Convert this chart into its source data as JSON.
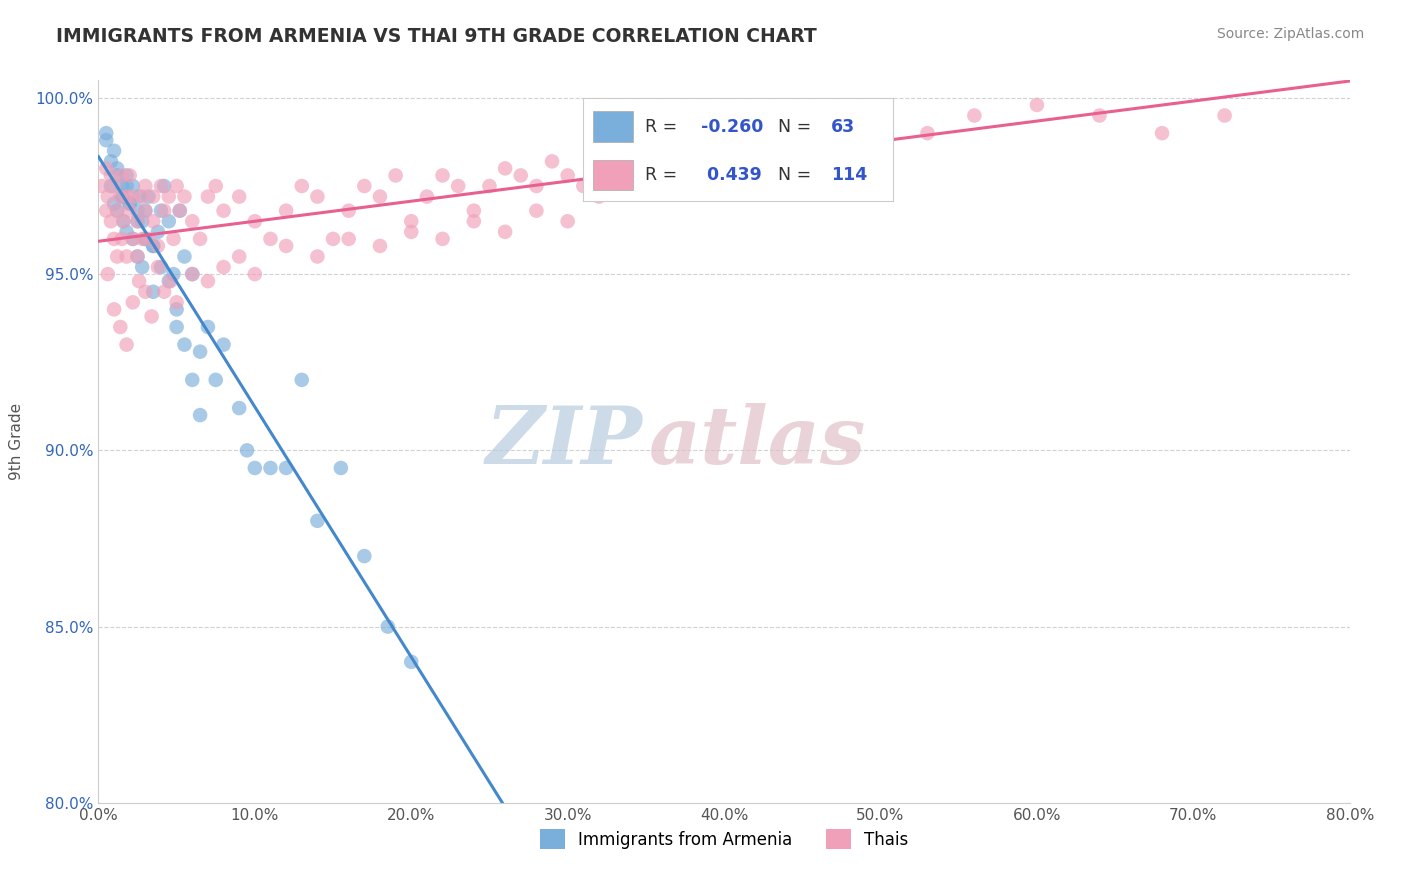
{
  "title": "IMMIGRANTS FROM ARMENIA VS THAI 9TH GRADE CORRELATION CHART",
  "source_text": "Source: ZipAtlas.com",
  "ylabel": "9th Grade",
  "xmin": 0.0,
  "xmax": 0.8,
  "ymin": 0.8,
  "ymax": 1.005,
  "yticks": [
    0.8,
    0.85,
    0.9,
    0.95,
    1.0
  ],
  "ytick_labels": [
    "80.0%",
    "85.0%",
    "90.0%",
    "95.0%",
    "100.0%"
  ],
  "xticks": [
    0.0,
    0.1,
    0.2,
    0.3,
    0.4,
    0.5,
    0.6,
    0.7,
    0.8
  ],
  "xtick_labels": [
    "0.0%",
    "10.0%",
    "20.0%",
    "30.0%",
    "40.0%",
    "50.0%",
    "60.0%",
    "70.0%",
    "80.0%"
  ],
  "armenia_R": -0.26,
  "armenia_N": 63,
  "thai_R": 0.439,
  "thai_N": 114,
  "armenia_color": "#7aaedb",
  "thai_color": "#f0a0b8",
  "armenia_line_color": "#4488cc",
  "thai_line_color": "#e86090",
  "dashed_line_color": "#b0b0b0",
  "legend_label_armenia": "Immigrants from Armenia",
  "legend_label_thai": "Thais",
  "watermark_zip": "ZIP",
  "watermark_atlas": "atlas",
  "watermark_color_zip": "#c8d8e8",
  "watermark_color_atlas": "#d8c8c8",
  "armenia_x": [
    0.005,
    0.008,
    0.01,
    0.012,
    0.012,
    0.015,
    0.016,
    0.016,
    0.018,
    0.018,
    0.02,
    0.022,
    0.022,
    0.025,
    0.025,
    0.026,
    0.028,
    0.028,
    0.03,
    0.03,
    0.032,
    0.035,
    0.035,
    0.038,
    0.04,
    0.042,
    0.045,
    0.048,
    0.05,
    0.052,
    0.055,
    0.06,
    0.065,
    0.07,
    0.075,
    0.08,
    0.09,
    0.095,
    0.1,
    0.11,
    0.12,
    0.13,
    0.14,
    0.155,
    0.17,
    0.185,
    0.2,
    0.005,
    0.008,
    0.01,
    0.012,
    0.015,
    0.018,
    0.02,
    0.025,
    0.03,
    0.035,
    0.04,
    0.045,
    0.05,
    0.055,
    0.06,
    0.065
  ],
  "armenia_y": [
    0.99,
    0.975,
    0.97,
    0.98,
    0.968,
    0.975,
    0.972,
    0.965,
    0.978,
    0.962,
    0.97,
    0.975,
    0.96,
    0.968,
    0.955,
    0.972,
    0.965,
    0.952,
    0.968,
    0.96,
    0.972,
    0.958,
    0.945,
    0.962,
    0.968,
    0.975,
    0.965,
    0.95,
    0.935,
    0.968,
    0.955,
    0.95,
    0.928,
    0.935,
    0.92,
    0.93,
    0.912,
    0.9,
    0.895,
    0.895,
    0.895,
    0.92,
    0.88,
    0.895,
    0.87,
    0.85,
    0.84,
    0.988,
    0.982,
    0.985,
    0.978,
    0.972,
    0.975,
    0.97,
    0.965,
    0.96,
    0.958,
    0.952,
    0.948,
    0.94,
    0.93,
    0.92,
    0.91
  ],
  "thai_x": [
    0.002,
    0.005,
    0.005,
    0.006,
    0.008,
    0.008,
    0.01,
    0.01,
    0.012,
    0.012,
    0.014,
    0.015,
    0.015,
    0.016,
    0.018,
    0.018,
    0.02,
    0.02,
    0.022,
    0.022,
    0.025,
    0.025,
    0.028,
    0.028,
    0.03,
    0.03,
    0.032,
    0.035,
    0.035,
    0.038,
    0.04,
    0.042,
    0.045,
    0.048,
    0.05,
    0.052,
    0.055,
    0.06,
    0.065,
    0.07,
    0.075,
    0.08,
    0.09,
    0.1,
    0.11,
    0.12,
    0.13,
    0.14,
    0.15,
    0.16,
    0.17,
    0.18,
    0.19,
    0.2,
    0.21,
    0.22,
    0.23,
    0.24,
    0.25,
    0.26,
    0.27,
    0.28,
    0.29,
    0.3,
    0.31,
    0.32,
    0.33,
    0.34,
    0.35,
    0.36,
    0.38,
    0.4,
    0.42,
    0.44,
    0.46,
    0.48,
    0.5,
    0.53,
    0.56,
    0.6,
    0.64,
    0.68,
    0.72,
    0.006,
    0.01,
    0.014,
    0.018,
    0.022,
    0.026,
    0.03,
    0.034,
    0.038,
    0.042,
    0.046,
    0.05,
    0.06,
    0.07,
    0.08,
    0.09,
    0.1,
    0.12,
    0.14,
    0.16,
    0.18,
    0.2,
    0.22,
    0.24,
    0.26,
    0.28,
    0.3,
    0.32,
    0.35,
    0.38,
    0.41
  ],
  "thai_y": [
    0.975,
    0.968,
    0.98,
    0.972,
    0.965,
    0.978,
    0.96,
    0.975,
    0.968,
    0.955,
    0.972,
    0.96,
    0.978,
    0.965,
    0.972,
    0.955,
    0.968,
    0.978,
    0.96,
    0.972,
    0.965,
    0.955,
    0.972,
    0.96,
    0.968,
    0.975,
    0.96,
    0.972,
    0.965,
    0.958,
    0.975,
    0.968,
    0.972,
    0.96,
    0.975,
    0.968,
    0.972,
    0.965,
    0.96,
    0.972,
    0.975,
    0.968,
    0.972,
    0.965,
    0.96,
    0.968,
    0.975,
    0.972,
    0.96,
    0.968,
    0.975,
    0.972,
    0.978,
    0.965,
    0.972,
    0.978,
    0.975,
    0.968,
    0.975,
    0.98,
    0.978,
    0.975,
    0.982,
    0.978,
    0.975,
    0.985,
    0.982,
    0.978,
    0.988,
    0.985,
    0.988,
    0.99,
    0.992,
    0.988,
    0.985,
    0.995,
    0.992,
    0.99,
    0.995,
    0.998,
    0.995,
    0.99,
    0.995,
    0.95,
    0.94,
    0.935,
    0.93,
    0.942,
    0.948,
    0.945,
    0.938,
    0.952,
    0.945,
    0.948,
    0.942,
    0.95,
    0.948,
    0.952,
    0.955,
    0.95,
    0.958,
    0.955,
    0.96,
    0.958,
    0.962,
    0.96,
    0.965,
    0.962,
    0.968,
    0.965,
    0.972,
    0.975,
    0.978,
    0.982
  ]
}
